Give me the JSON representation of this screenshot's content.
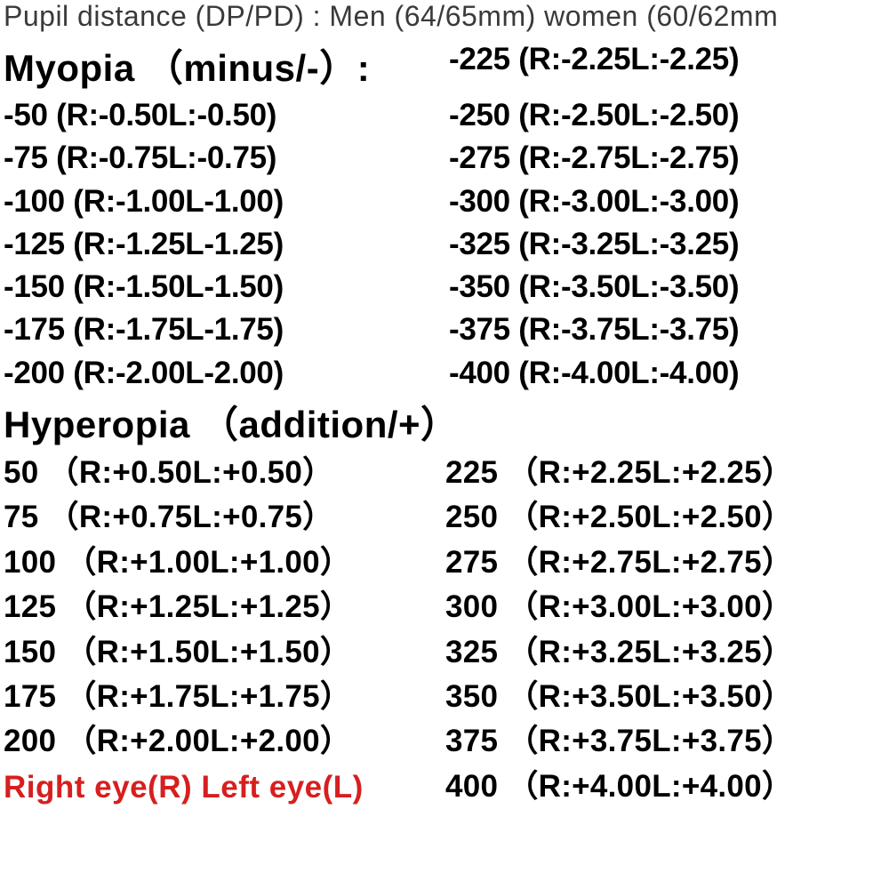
{
  "header": "Pupil distance (DP/PD) : Men (64/65mm) women (60/62mm",
  "myopia": {
    "title": "Myopia （minus/-）:",
    "col1": [
      "-50 (R:-0.50L:-0.50)",
      "-75 (R:-0.75L:-0.75)",
      "-100 (R:-1.00L-1.00)",
      "-125 (R:-1.25L-1.25)",
      "-150 (R:-1.50L-1.50)",
      "-175 (R:-1.75L-1.75)",
      "-200 (R:-2.00L-2.00)"
    ],
    "col2": [
      "-225 (R:-2.25L:-2.25)",
      "-250 (R:-2.50L:-2.50)",
      "-275 (R:-2.75L:-2.75)",
      "-300 (R:-3.00L:-3.00)",
      "-325 (R:-3.25L:-3.25)",
      "-350 (R:-3.50L:-3.50)",
      "-375 (R:-3.75L:-3.75)",
      "-400 (R:-4.00L:-4.00)"
    ]
  },
  "hyperopia": {
    "title": "Hyperopia （addition/+）",
    "col1": [
      "50 （R:+0.50L:+0.50）",
      "75 （R:+0.75L:+0.75）",
      "100 （R:+1.00L:+1.00）",
      "125 （R:+1.25L:+1.25）",
      "150 （R:+1.50L:+1.50）",
      "175 （R:+1.75L:+1.75）",
      "200 （R:+2.00L:+2.00）"
    ],
    "col2": [
      "225 （R:+2.25L:+2.25）",
      "250 （R:+2.50L:+2.50）",
      "275 （R:+2.75L:+2.75）",
      "300 （R:+3.00L:+3.00）",
      "325 （R:+3.25L:+3.25）",
      "350 （R:+3.50L:+3.50）",
      "375 （R:+3.75L:+3.75）",
      "400 （R:+4.00L:+4.00）"
    ]
  },
  "legend": "Right eye(R)  Left eye(L)",
  "styling": {
    "background": "#ffffff",
    "text_color": "#000000",
    "legend_color": "#d61f1f",
    "header_fontsize": 32,
    "title_fontsize": 42,
    "row_fontsize": 35,
    "font_family": "Arial"
  }
}
